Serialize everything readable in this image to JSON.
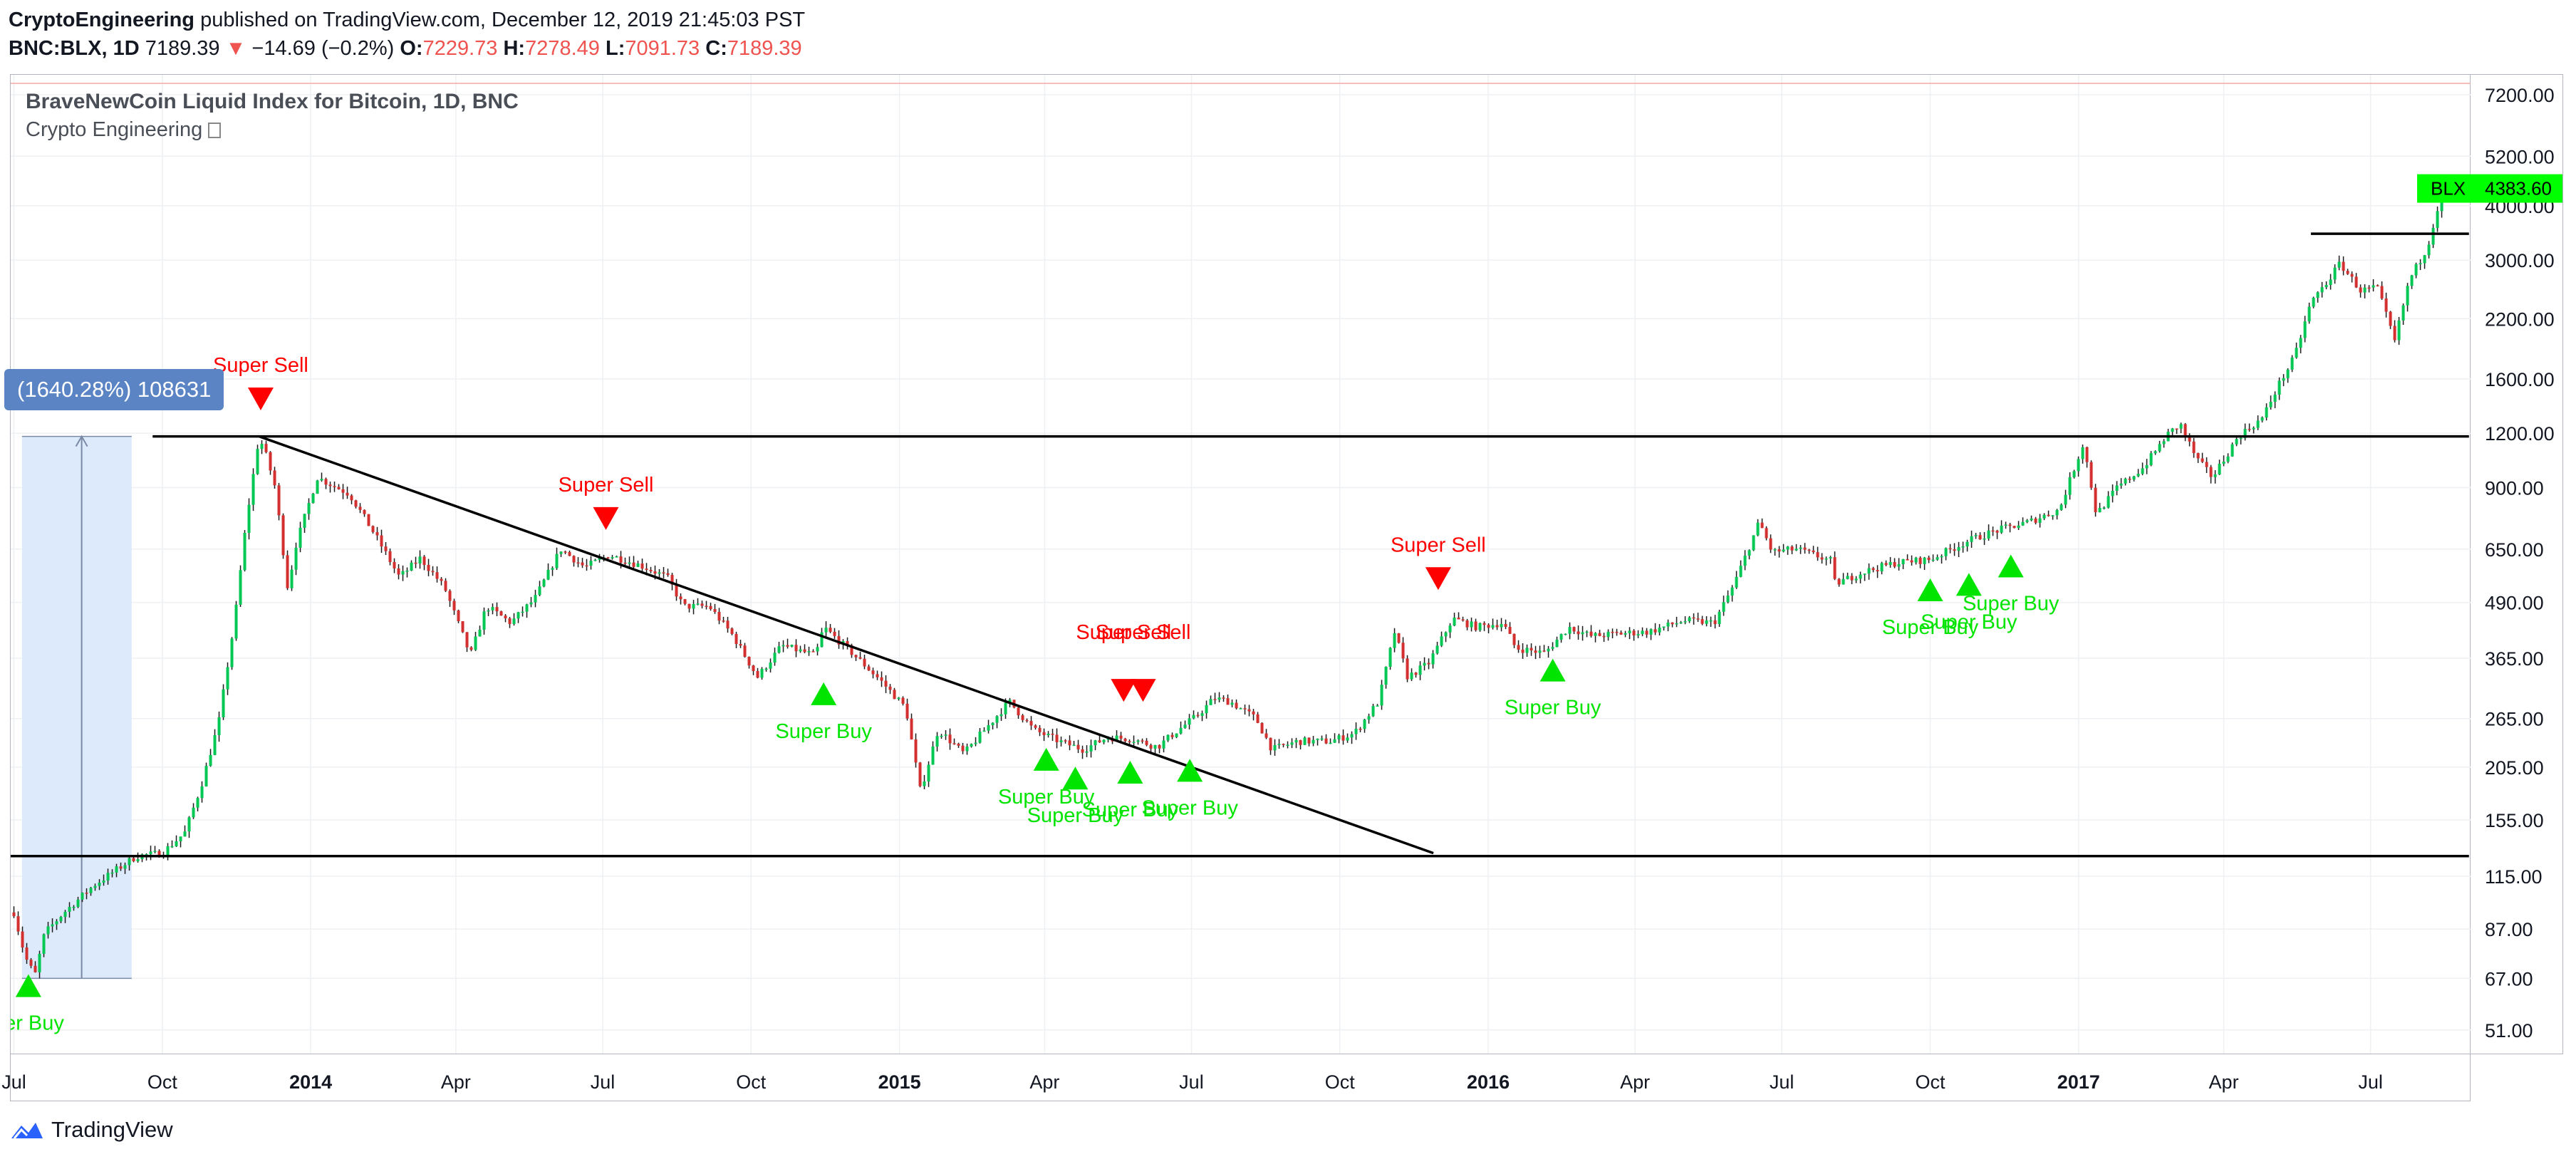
{
  "header": {
    "author": "CryptoEngineering",
    "published": "published on TradingView.com, December 12, 2019 21:45:03 PST",
    "symbol": "BNC:BLX, 1D",
    "last": "7189.39",
    "arrow": "▼",
    "change": "−14.69 (−0.2%)",
    "o_label": "O:",
    "o_value": "7229.73",
    "h_label": "H:",
    "h_value": "7278.49",
    "l_label": "L:",
    "l_value": "7091.73",
    "c_label": "C:",
    "c_value": "7189.39"
  },
  "legend": {
    "title": "BraveNewCoin Liquid Index for Bitcoin, 1D, BNC",
    "indicator": "Crypto Engineering"
  },
  "measure": {
    "label": "(1640.28%) 108631"
  },
  "footer": {
    "brand": "TradingView"
  },
  "colors": {
    "up": "#00c853",
    "down": "#d32f2f",
    "buy": "#00e400",
    "sell": "#ff0000",
    "last_price_bg": "#00ff00",
    "measure_fill": "#ddeafb"
  },
  "chart_data": {
    "type": "candlestick",
    "title": "BraveNewCoin Liquid Index for Bitcoin, 1D, BNC",
    "y_scale": "log",
    "ylim": [
      45,
      8000
    ],
    "y_ticks": [
      51,
      67,
      87,
      115,
      155,
      205,
      265,
      365,
      490,
      650,
      900,
      1200,
      1600,
      2200,
      3000,
      4000,
      5200,
      7200
    ],
    "y_tick_labels": [
      "51.00",
      "67.00",
      "87.00",
      "115.00",
      "155.00",
      "205.00",
      "265.00",
      "365.00",
      "490.00",
      "650.00",
      "900.00",
      "1200.00",
      "1600.00",
      "2200.00",
      "3000.00",
      "4000.00",
      "5200.00",
      "7200.00"
    ],
    "x_ticks": [
      {
        "label": "Jul",
        "date": "2013-07-01",
        "bold": false
      },
      {
        "label": "Oct",
        "date": "2013-10-01",
        "bold": false
      },
      {
        "label": "2014",
        "date": "2014-01-01",
        "bold": true
      },
      {
        "label": "Apr",
        "date": "2014-04-01",
        "bold": false
      },
      {
        "label": "Jul",
        "date": "2014-07-01",
        "bold": false
      },
      {
        "label": "Oct",
        "date": "2014-10-01",
        "bold": false
      },
      {
        "label": "2015",
        "date": "2015-01-01",
        "bold": true
      },
      {
        "label": "Apr",
        "date": "2015-04-01",
        "bold": false
      },
      {
        "label": "Jul",
        "date": "2015-07-01",
        "bold": false
      },
      {
        "label": "Oct",
        "date": "2015-10-01",
        "bold": false
      },
      {
        "label": "2016",
        "date": "2016-01-01",
        "bold": true
      },
      {
        "label": "Apr",
        "date": "2016-04-01",
        "bold": false
      },
      {
        "label": "Jul",
        "date": "2016-07-01",
        "bold": false
      },
      {
        "label": "Oct",
        "date": "2016-10-01",
        "bold": false
      },
      {
        "label": "2017",
        "date": "2017-01-01",
        "bold": true
      },
      {
        "label": "Apr",
        "date": "2017-04-01",
        "bold": false
      },
      {
        "label": "Jul",
        "date": "2017-07-01",
        "bold": false
      }
    ],
    "price_path": [
      [
        "2013-07-01",
        95
      ],
      [
        "2013-07-08",
        75
      ],
      [
        "2013-07-14",
        68
      ],
      [
        "2013-07-20",
        85
      ],
      [
        "2013-08-01",
        95
      ],
      [
        "2013-08-20",
        110
      ],
      [
        "2013-09-15",
        128
      ],
      [
        "2013-10-01",
        130
      ],
      [
        "2013-10-15",
        145
      ],
      [
        "2013-10-25",
        185
      ],
      [
        "2013-11-05",
        260
      ],
      [
        "2013-11-15",
        450
      ],
      [
        "2013-11-22",
        750
      ],
      [
        "2013-11-30",
        1180
      ],
      [
        "2013-12-05",
        1050
      ],
      [
        "2013-12-10",
        900
      ],
      [
        "2013-12-18",
        520
      ],
      [
        "2013-12-22",
        650
      ],
      [
        "2014-01-05",
        950
      ],
      [
        "2014-01-25",
        870
      ],
      [
        "2014-02-10",
        700
      ],
      [
        "2014-02-25",
        560
      ],
      [
        "2014-03-10",
        620
      ],
      [
        "2014-03-25",
        530
      ],
      [
        "2014-04-10",
        370
      ],
      [
        "2014-04-20",
        480
      ],
      [
        "2014-05-05",
        440
      ],
      [
        "2014-05-20",
        500
      ],
      [
        "2014-06-05",
        650
      ],
      [
        "2014-06-20",
        590
      ],
      [
        "2014-07-05",
        630
      ],
      [
        "2014-07-25",
        595
      ],
      [
        "2014-08-10",
        560
      ],
      [
        "2014-08-20",
        480
      ],
      [
        "2014-09-05",
        480
      ],
      [
        "2014-09-20",
        410
      ],
      [
        "2014-10-05",
        330
      ],
      [
        "2014-10-20",
        390
      ],
      [
        "2014-11-10",
        370
      ],
      [
        "2014-11-15",
        430
      ],
      [
        "2014-12-01",
        380
      ],
      [
        "2014-12-20",
        325
      ],
      [
        "2015-01-05",
        280
      ],
      [
        "2015-01-14",
        180
      ],
      [
        "2015-01-25",
        250
      ],
      [
        "2015-02-10",
        220
      ],
      [
        "2015-02-25",
        255
      ],
      [
        "2015-03-10",
        290
      ],
      [
        "2015-03-25",
        250
      ],
      [
        "2015-04-10",
        235
      ],
      [
        "2015-04-25",
        225
      ],
      [
        "2015-05-10",
        240
      ],
      [
        "2015-05-25",
        238
      ],
      [
        "2015-06-10",
        228
      ],
      [
        "2015-06-20",
        245
      ],
      [
        "2015-07-05",
        270
      ],
      [
        "2015-07-15",
        295
      ],
      [
        "2015-07-25",
        290
      ],
      [
        "2015-08-10",
        265
      ],
      [
        "2015-08-20",
        225
      ],
      [
        "2015-09-05",
        235
      ],
      [
        "2015-09-25",
        235
      ],
      [
        "2015-10-10",
        245
      ],
      [
        "2015-10-25",
        290
      ],
      [
        "2015-11-04",
        420
      ],
      [
        "2015-11-12",
        330
      ],
      [
        "2015-11-25",
        355
      ],
      [
        "2015-12-10",
        450
      ],
      [
        "2015-12-25",
        430
      ],
      [
        "2016-01-10",
        440
      ],
      [
        "2016-01-18",
        385
      ],
      [
        "2016-02-05",
        375
      ],
      [
        "2016-02-20",
        430
      ],
      [
        "2016-03-05",
        410
      ],
      [
        "2016-03-20",
        415
      ],
      [
        "2016-04-10",
        420
      ],
      [
        "2016-05-01",
        445
      ],
      [
        "2016-05-20",
        440
      ],
      [
        "2016-06-01",
        535
      ],
      [
        "2016-06-17",
        750
      ],
      [
        "2016-06-25",
        640
      ],
      [
        "2016-07-10",
        650
      ],
      [
        "2016-08-01",
        610
      ],
      [
        "2016-08-03",
        540
      ],
      [
        "2016-08-20",
        575
      ],
      [
        "2016-09-10",
        605
      ],
      [
        "2016-10-01",
        615
      ],
      [
        "2016-10-25",
        680
      ],
      [
        "2016-11-10",
        715
      ],
      [
        "2016-12-01",
        750
      ],
      [
        "2016-12-20",
        800
      ],
      [
        "2017-01-04",
        1140
      ],
      [
        "2017-01-12",
        780
      ],
      [
        "2017-01-25",
        900
      ],
      [
        "2017-02-10",
        1000
      ],
      [
        "2017-02-25",
        1190
      ],
      [
        "2017-03-05",
        1260
      ],
      [
        "2017-03-15",
        1050
      ],
      [
        "2017-03-25",
        950
      ],
      [
        "2017-04-10",
        1180
      ],
      [
        "2017-04-25",
        1300
      ],
      [
        "2017-05-05",
        1550
      ],
      [
        "2017-05-15",
        1800
      ],
      [
        "2017-05-25",
        2400
      ],
      [
        "2017-06-05",
        2700
      ],
      [
        "2017-06-12",
        2950
      ],
      [
        "2017-06-25",
        2550
      ],
      [
        "2017-07-05",
        2600
      ],
      [
        "2017-07-16",
        1950
      ],
      [
        "2017-07-25",
        2700
      ],
      [
        "2017-08-05",
        3200
      ],
      [
        "2017-08-12",
        4000
      ],
      [
        "2017-08-17",
        4383
      ]
    ],
    "last_price": {
      "label": "BLX",
      "value": "4383.60",
      "price": 4383.6
    },
    "horizontal_lines": [
      {
        "from": "2013-09-25",
        "to": "2017-08-31",
        "price": 1180
      },
      {
        "from": "2013-06-25",
        "to": "2017-08-31",
        "price": 128
      },
      {
        "from": "2017-05-25",
        "to": "2017-08-31",
        "price": 3450
      }
    ],
    "trend_line": {
      "from": [
        "2013-11-30",
        1180
      ],
      "to": [
        "2015-11-28",
        130
      ]
    },
    "measure": {
      "from": [
        "2013-07-14",
        67
      ],
      "to": [
        "2013-11-30",
        1180
      ],
      "label": "(1640.28%) 108631"
    },
    "signals": [
      {
        "type": "buy",
        "date": "2013-07-10",
        "price": 64,
        "label": "per Buy",
        "ly": 0
      },
      {
        "type": "sell",
        "date": "2013-12-01",
        "price": 1450,
        "label": "Super Sell",
        "ly": 0
      },
      {
        "type": "sell",
        "date": "2014-07-03",
        "price": 770,
        "label": "Super Sell",
        "ly": 0
      },
      {
        "type": "buy",
        "date": "2014-11-15",
        "price": 300,
        "label": "Super Buy",
        "ly": 0
      },
      {
        "type": "buy",
        "date": "2015-04-02",
        "price": 212,
        "label": "Super Buy",
        "ly": 0
      },
      {
        "type": "buy",
        "date": "2015-04-20",
        "price": 192,
        "label": "Super Buy",
        "ly": 0
      },
      {
        "type": "sell",
        "date": "2015-05-20",
        "price": 310,
        "label": "Super Sell",
        "ly": -34
      },
      {
        "type": "sell",
        "date": "2015-06-01",
        "price": 310,
        "label": "Super Sell",
        "ly": -34
      },
      {
        "type": "buy",
        "date": "2015-05-24",
        "price": 198,
        "label": "Super Buy",
        "ly": 0
      },
      {
        "type": "buy",
        "date": "2015-06-30",
        "price": 200,
        "label": "Super Buy",
        "ly": 0
      },
      {
        "type": "sell",
        "date": "2015-12-01",
        "price": 560,
        "label": "Super Sell",
        "ly": 0
      },
      {
        "type": "buy",
        "date": "2016-02-10",
        "price": 340,
        "label": "Super Buy",
        "ly": 0
      },
      {
        "type": "buy",
        "date": "2016-10-01",
        "price": 520,
        "label": "Super Buy",
        "ly": 0
      },
      {
        "type": "buy",
        "date": "2016-10-25",
        "price": 535,
        "label": "Super Buy",
        "ly": 0
      },
      {
        "type": "buy",
        "date": "2016-11-20",
        "price": 590,
        "label": "Super Buy",
        "ly": 0
      }
    ],
    "grid": true,
    "legend_position": "top-left"
  }
}
